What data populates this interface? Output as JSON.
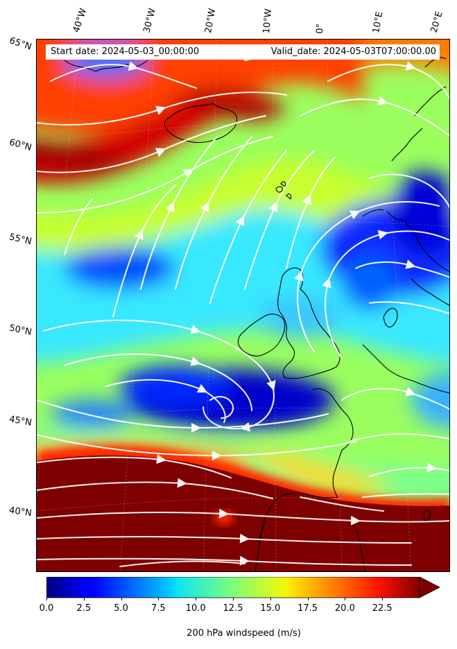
{
  "header": {
    "start_date": "Start date: 2024-05-03_00:00:00",
    "valid_date": "Valid_date: 2024-05-03T07:00:00.00"
  },
  "longitude_labels": [
    "40°W",
    "30°W",
    "20°W",
    "10°W",
    "0°",
    "10°E",
    "20°E"
  ],
  "latitude_labels": [
    "65°N",
    "60°N",
    "55°N",
    "50°N",
    "45°N",
    "40°N"
  ],
  "colorbar": {
    "label": "200 hPa windspeed (m/s)",
    "ticks": [
      "0.0",
      "2.5",
      "5.0",
      "7.5",
      "10.0",
      "12.5",
      "15.0",
      "17.5",
      "20.0",
      "22.5"
    ],
    "min": 0,
    "max": 25,
    "extend": "max",
    "colormap": "jet",
    "over_color": "#7f0000"
  },
  "map": {
    "field": "200 hPa windspeed",
    "streamline_color": "#ffffff",
    "coastline_color": "#000000"
  }
}
